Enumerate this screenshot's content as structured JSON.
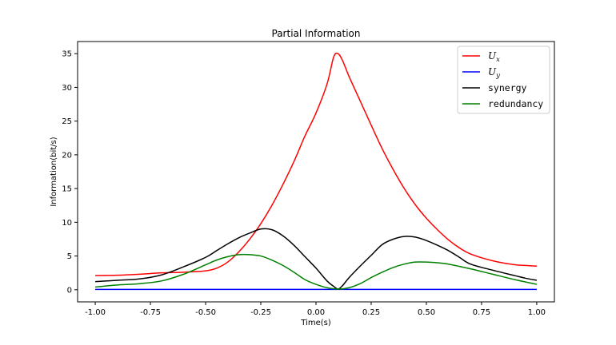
{
  "chart_data": {
    "type": "line",
    "title": "Partial Information",
    "xlabel": "Time(s)",
    "ylabel": "Information(bit/s)",
    "xlim": [
      -1.08,
      1.08
    ],
    "ylim": [
      -1.8,
      36.8
    ],
    "xticks": [
      "-1.00",
      "-0.75",
      "-0.50",
      "-0.25",
      "0.00",
      "0.25",
      "0.50",
      "0.75",
      "1.00"
    ],
    "yticks": [
      "0",
      "5",
      "10",
      "15",
      "20",
      "25",
      "30",
      "35"
    ],
    "grid": false,
    "legend_position": "top-right",
    "series": [
      {
        "name": "U_x",
        "legend_main": "U",
        "legend_sub": "x",
        "color": "#ff0000",
        "x": [
          -1.0,
          -0.9,
          -0.8,
          -0.7,
          -0.6,
          -0.5,
          -0.45,
          -0.4,
          -0.35,
          -0.3,
          -0.25,
          -0.2,
          -0.15,
          -0.1,
          -0.05,
          0.0,
          0.05,
          0.08,
          0.1,
          0.12,
          0.15,
          0.2,
          0.25,
          0.3,
          0.35,
          0.4,
          0.45,
          0.5,
          0.55,
          0.6,
          0.65,
          0.7,
          0.8,
          0.9,
          0.95,
          1.0
        ],
        "values": [
          2.1,
          2.15,
          2.3,
          2.5,
          2.6,
          2.8,
          3.2,
          4.1,
          5.6,
          7.5,
          9.8,
          12.5,
          15.6,
          19.0,
          22.8,
          26.2,
          30.5,
          34.5,
          35.0,
          34.0,
          31.6,
          28.0,
          24.4,
          20.9,
          17.8,
          15.0,
          12.6,
          10.6,
          8.9,
          7.4,
          6.2,
          5.3,
          4.3,
          3.7,
          3.6,
          3.5
        ]
      },
      {
        "name": "U_y",
        "legend_main": "U",
        "legend_sub": "y",
        "color": "#0000ff",
        "x": [
          -1.0,
          1.0
        ],
        "values": [
          0.05,
          0.05
        ]
      },
      {
        "name": "synergy",
        "legend_main": "synergy",
        "legend_sub": "",
        "color": "#000000",
        "x": [
          -1.0,
          -0.9,
          -0.8,
          -0.7,
          -0.6,
          -0.5,
          -0.45,
          -0.4,
          -0.35,
          -0.3,
          -0.25,
          -0.2,
          -0.15,
          -0.1,
          -0.05,
          0.0,
          0.05,
          0.08,
          0.1,
          0.12,
          0.15,
          0.2,
          0.25,
          0.3,
          0.35,
          0.4,
          0.45,
          0.5,
          0.55,
          0.6,
          0.65,
          0.7,
          0.8,
          0.9,
          0.95,
          1.0
        ],
        "values": [
          1.2,
          1.4,
          1.6,
          2.2,
          3.4,
          4.8,
          5.8,
          6.8,
          7.7,
          8.4,
          9.0,
          8.9,
          8.0,
          6.6,
          4.9,
          3.2,
          1.3,
          0.5,
          0.1,
          0.6,
          1.8,
          3.5,
          5.1,
          6.7,
          7.5,
          7.9,
          7.8,
          7.3,
          6.6,
          5.8,
          4.8,
          3.8,
          2.9,
          2.1,
          1.7,
          1.4
        ]
      },
      {
        "name": "redundancy",
        "legend_main": "redundancy",
        "legend_sub": "",
        "color": "#008000",
        "x": [
          -1.0,
          -0.9,
          -0.8,
          -0.7,
          -0.6,
          -0.5,
          -0.45,
          -0.4,
          -0.35,
          -0.3,
          -0.25,
          -0.2,
          -0.15,
          -0.1,
          -0.05,
          0.0,
          0.05,
          0.1,
          0.15,
          0.2,
          0.25,
          0.3,
          0.35,
          0.4,
          0.45,
          0.5,
          0.55,
          0.6,
          0.7,
          0.8,
          0.9,
          1.0
        ],
        "values": [
          0.4,
          0.7,
          0.9,
          1.3,
          2.3,
          3.7,
          4.4,
          4.9,
          5.2,
          5.2,
          5.0,
          4.4,
          3.6,
          2.6,
          1.5,
          0.8,
          0.3,
          0.1,
          0.3,
          0.9,
          1.8,
          2.6,
          3.3,
          3.8,
          4.1,
          4.1,
          4.0,
          3.8,
          3.1,
          2.3,
          1.5,
          0.8
        ]
      }
    ]
  }
}
